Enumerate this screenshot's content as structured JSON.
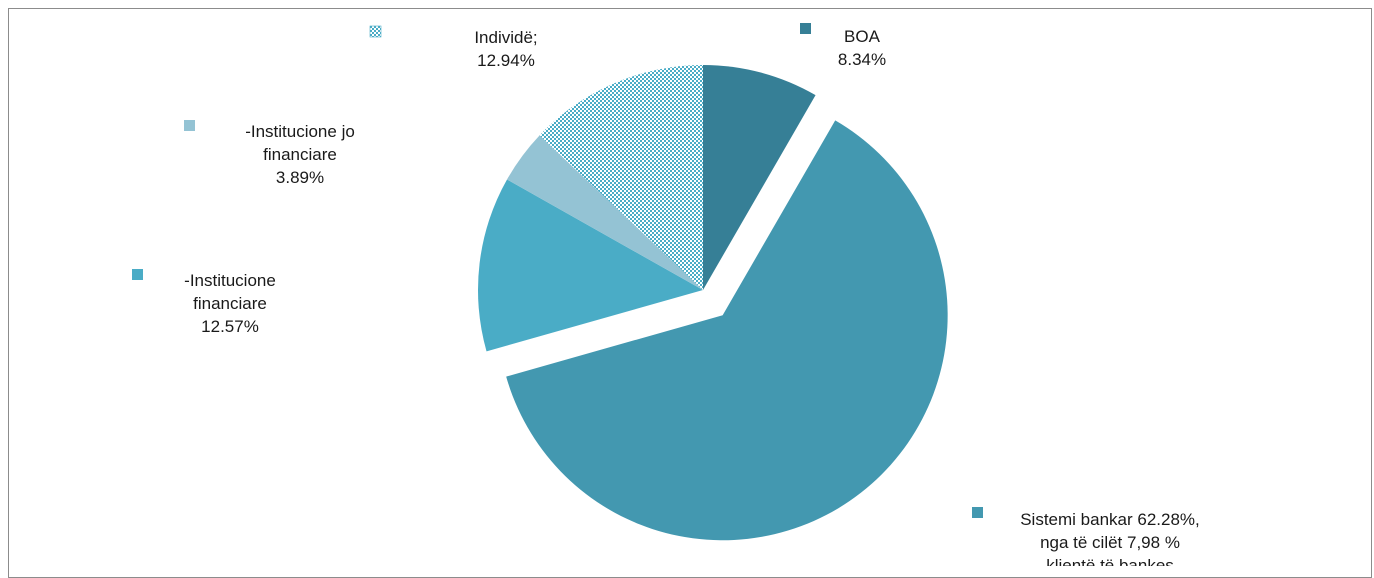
{
  "chart_data": {
    "type": "pie",
    "title": "",
    "slices": [
      {
        "name": "BOA",
        "value": 8.34,
        "color": "#367f96",
        "pattern": "solid",
        "label_lines": [
          "BOA",
          "8.34%"
        ]
      },
      {
        "name": "Sistemi bankar",
        "value": 62.28,
        "color": "#4398b0",
        "pattern": "solid",
        "exploded": true,
        "label_lines": [
          "Sistemi bankar 62.28%,",
          "nga të cilët 7,98 %",
          "klientë të bankes"
        ]
      },
      {
        "name": "-Institucione financiare",
        "value": 12.57,
        "color": "#4aacc6",
        "pattern": "solid",
        "label_lines": [
          "-Institucione",
          "financiare",
          "12.57%"
        ]
      },
      {
        "name": "-Institucione jo financiare",
        "value": 3.89,
        "color": "#94c3d4",
        "pattern": "solid",
        "label_lines": [
          "-Institucione jo",
          "financiare",
          "3.89%"
        ]
      },
      {
        "name": "Individë",
        "value": 12.94,
        "color": "#4aacc6",
        "pattern": "checker",
        "label_lines": [
          "Individë;",
          "12.94%"
        ]
      }
    ],
    "start_angle": "12 o'clock",
    "direction": "clockwise",
    "legend": "none (labels beside slices with color keys)"
  }
}
